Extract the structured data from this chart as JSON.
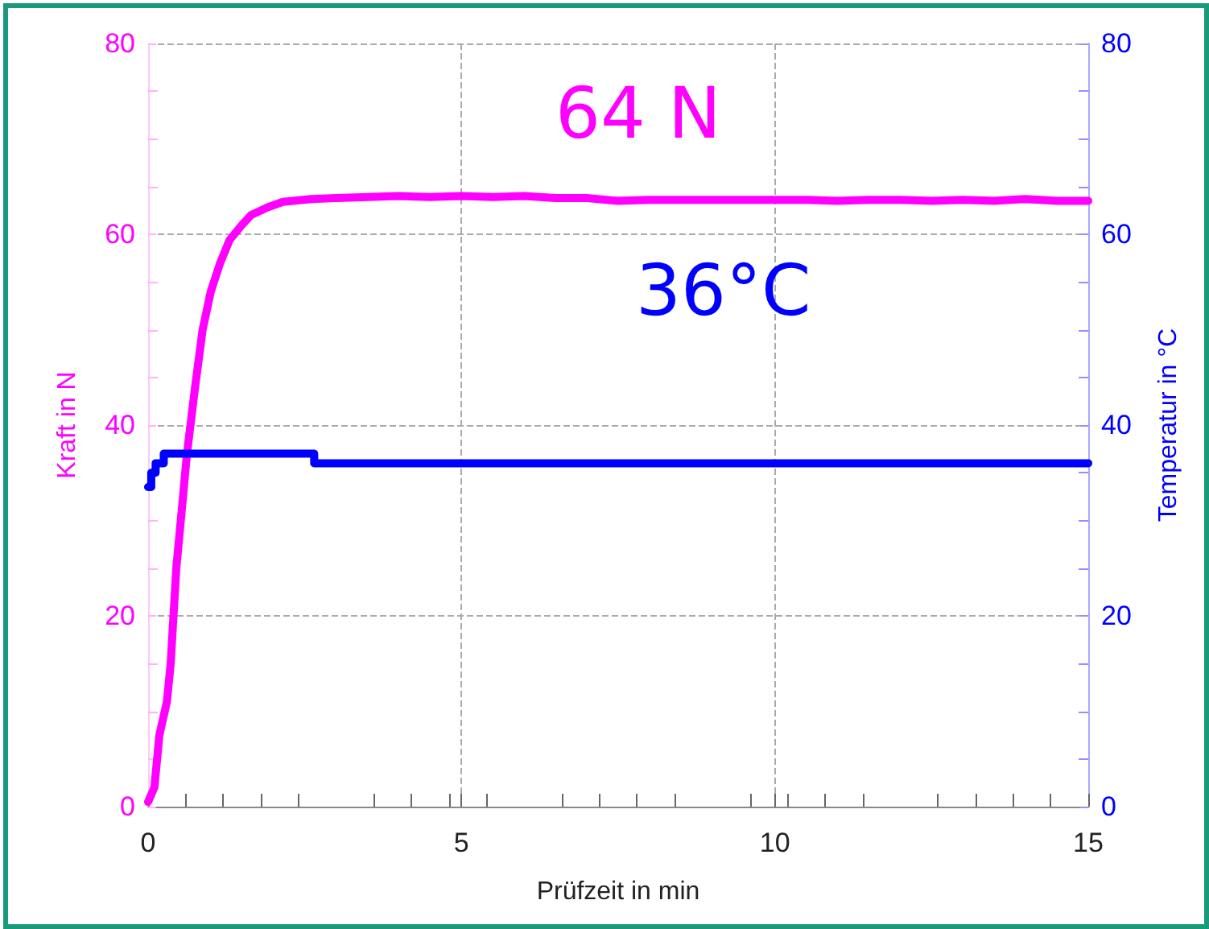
{
  "chart_data": {
    "type": "line",
    "xlabel": "Prüfzeit in min",
    "ylabel": "Kraft in N",
    "y2label": "Temperatur in °C",
    "xlim": [
      0,
      15
    ],
    "xticks": [
      0,
      5,
      10,
      15
    ],
    "ylim": [
      0,
      80
    ],
    "yticks": [
      0,
      20,
      40,
      60,
      80
    ],
    "y2lim": [
      0,
      80
    ],
    "y2ticks": [
      0,
      20,
      40,
      60,
      80
    ],
    "grid": true,
    "marker": "none",
    "line_style": "solid",
    "series": [
      {
        "color": "#ff00ff",
        "x": [
          0,
          0.1,
          0.18,
          0.3,
          0.36,
          0.45,
          0.55,
          0.62,
          0.75,
          0.87,
          1.0,
          1.15,
          1.3,
          1.5,
          1.64,
          1.9,
          2.15,
          2.6,
          3.0,
          3.5,
          4.0,
          4.5,
          5.0,
          5.5,
          6.0,
          6.5,
          7.0,
          7.5,
          8.0,
          8.5,
          9.0,
          9.5,
          10.0,
          10.5,
          11.0,
          11.5,
          12.0,
          12.5,
          13.0,
          13.5,
          14.0,
          14.5,
          15.0
        ],
        "values": [
          0.5,
          2,
          7.5,
          11,
          15,
          25,
          32,
          37,
          44,
          50,
          54,
          57,
          59.4,
          61,
          62,
          62.8,
          63.4,
          63.7,
          63.8,
          63.9,
          64,
          63.9,
          64,
          63.9,
          64,
          63.8,
          63.8,
          63.5,
          63.6,
          63.6,
          63.6,
          63.6,
          63.6,
          63.6,
          63.5,
          63.6,
          63.6,
          63.5,
          63.6,
          63.5,
          63.7,
          63.5,
          63.5
        ]
      },
      {
        "type": "step",
        "axis": "y2",
        "color": "#0000ff",
        "x": [
          0,
          0.05,
          0.12,
          0.25,
          2.65,
          15
        ],
        "values": [
          33.5,
          35,
          36,
          37,
          36,
          36
        ]
      }
    ],
    "annotations": [
      "64 N",
      "36°C"
    ]
  }
}
